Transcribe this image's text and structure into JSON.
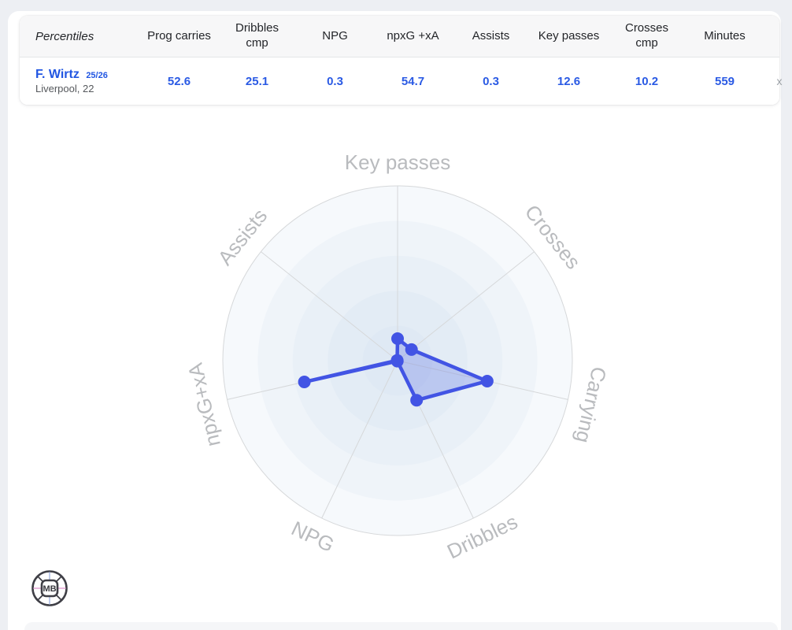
{
  "table": {
    "percentiles_label": "Percentiles",
    "columns": [
      "Prog carries",
      "Dribbles\ncmp",
      "NPG",
      "npxG +xA",
      "Assists",
      "Key passes",
      "Crosses\ncmp",
      "Minutes"
    ],
    "row": {
      "player_name": "F. Wirtz",
      "season": "25/26",
      "club_age": "Liverpool, 22",
      "values": [
        "52.6",
        "25.1",
        "0.3",
        "54.7",
        "0.3",
        "12.6",
        "10.2",
        "559"
      ],
      "close_label": "x"
    }
  },
  "chart_data": {
    "type": "radar",
    "axes": [
      "Key passes",
      "Crosses",
      "Carrying",
      "Dribbles",
      "NPG",
      "npxG+xA",
      "Assists"
    ],
    "series": [
      {
        "name": "F. Wirtz 25/26",
        "values": [
          12.6,
          10.2,
          52.6,
          25.1,
          0.3,
          54.7,
          0.3
        ]
      }
    ],
    "range": [
      0,
      100
    ],
    "rings": 5,
    "accent_stroke": "#4254e4",
    "accent_fill": "rgba(95,115,230,0.30)",
    "axis_label_color": "#b9bbbe",
    "grid_color": "#d6d8da",
    "legend_position": "none"
  },
  "logo": {
    "initials": "MB"
  }
}
